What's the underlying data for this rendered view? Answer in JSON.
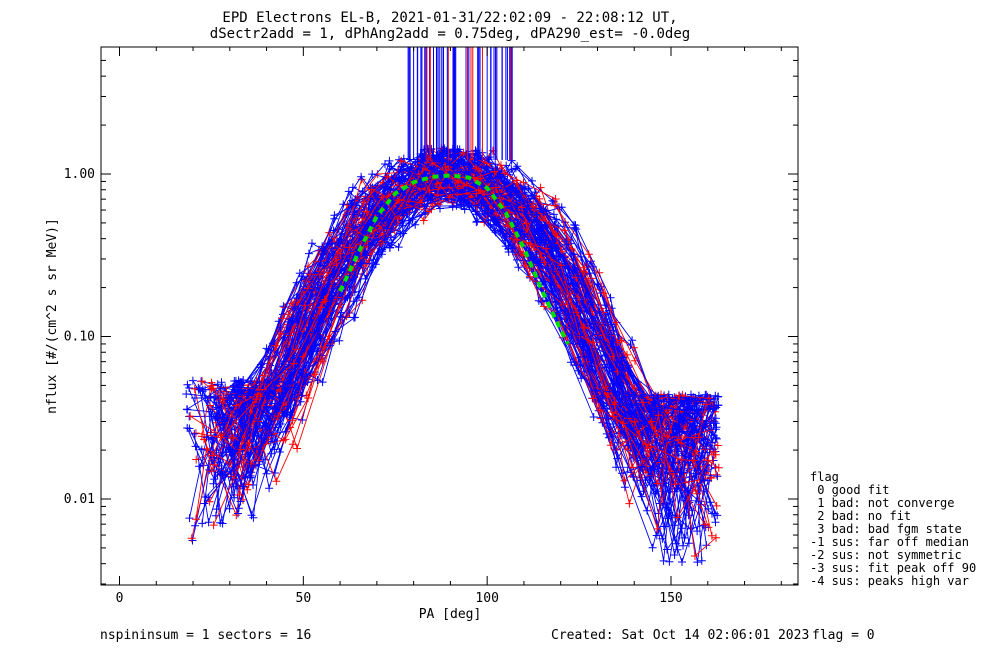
{
  "chart_data": {
    "type": "line",
    "title_line1": "EPD Electrons EL-B, 2021-01-31/22:02:09 - 22:08:12 UT,",
    "title_line2": "dSectr2add = 1, dPhAng2add = 0.75deg, dPA290_est=  -0.0deg",
    "xlabel": "PA [deg]",
    "ylabel": "nflux [#/(cm^2 s sr MeV)]",
    "xlim": [
      -5,
      185
    ],
    "ylim": [
      0.003,
      6.0
    ],
    "yscale": "log",
    "x_ticks": [
      0,
      50,
      100,
      150
    ],
    "x_tick_labels": [
      "0",
      "50",
      "100",
      "150"
    ],
    "y_ticks": [
      0.01,
      0.1,
      1.0
    ],
    "y_tick_labels": [
      "0.01",
      "0.10",
      "1.00"
    ],
    "series_colors": [
      "#ff0000",
      "#0000ff"
    ],
    "fit_color": "#00dd00",
    "fit_curve": {
      "style": "dashed",
      "x": [
        60,
        65,
        70,
        75,
        80,
        85,
        90,
        95,
        100,
        105,
        110,
        115,
        120,
        122
      ],
      "y": [
        0.19,
        0.33,
        0.55,
        0.76,
        0.89,
        0.96,
        0.98,
        0.95,
        0.82,
        0.58,
        0.35,
        0.19,
        0.11,
        0.09
      ]
    },
    "grid": false
  },
  "footer": {
    "left": "nspininsum =  1  sectors = 16",
    "created": "Created: Sat Oct 14 02:06:01 2023",
    "flag": "flag = 0"
  },
  "legend": {
    "title": "flag",
    "items": [
      " 0 good fit",
      " 1 bad: not converge",
      " 2 bad: no fit",
      " 3 bad: bad fgm state",
      "-1 sus: far off median",
      "-2 sus: not symmetric",
      "-3 sus: fit peak off 90",
      "-4 sus: peaks high var"
    ]
  }
}
